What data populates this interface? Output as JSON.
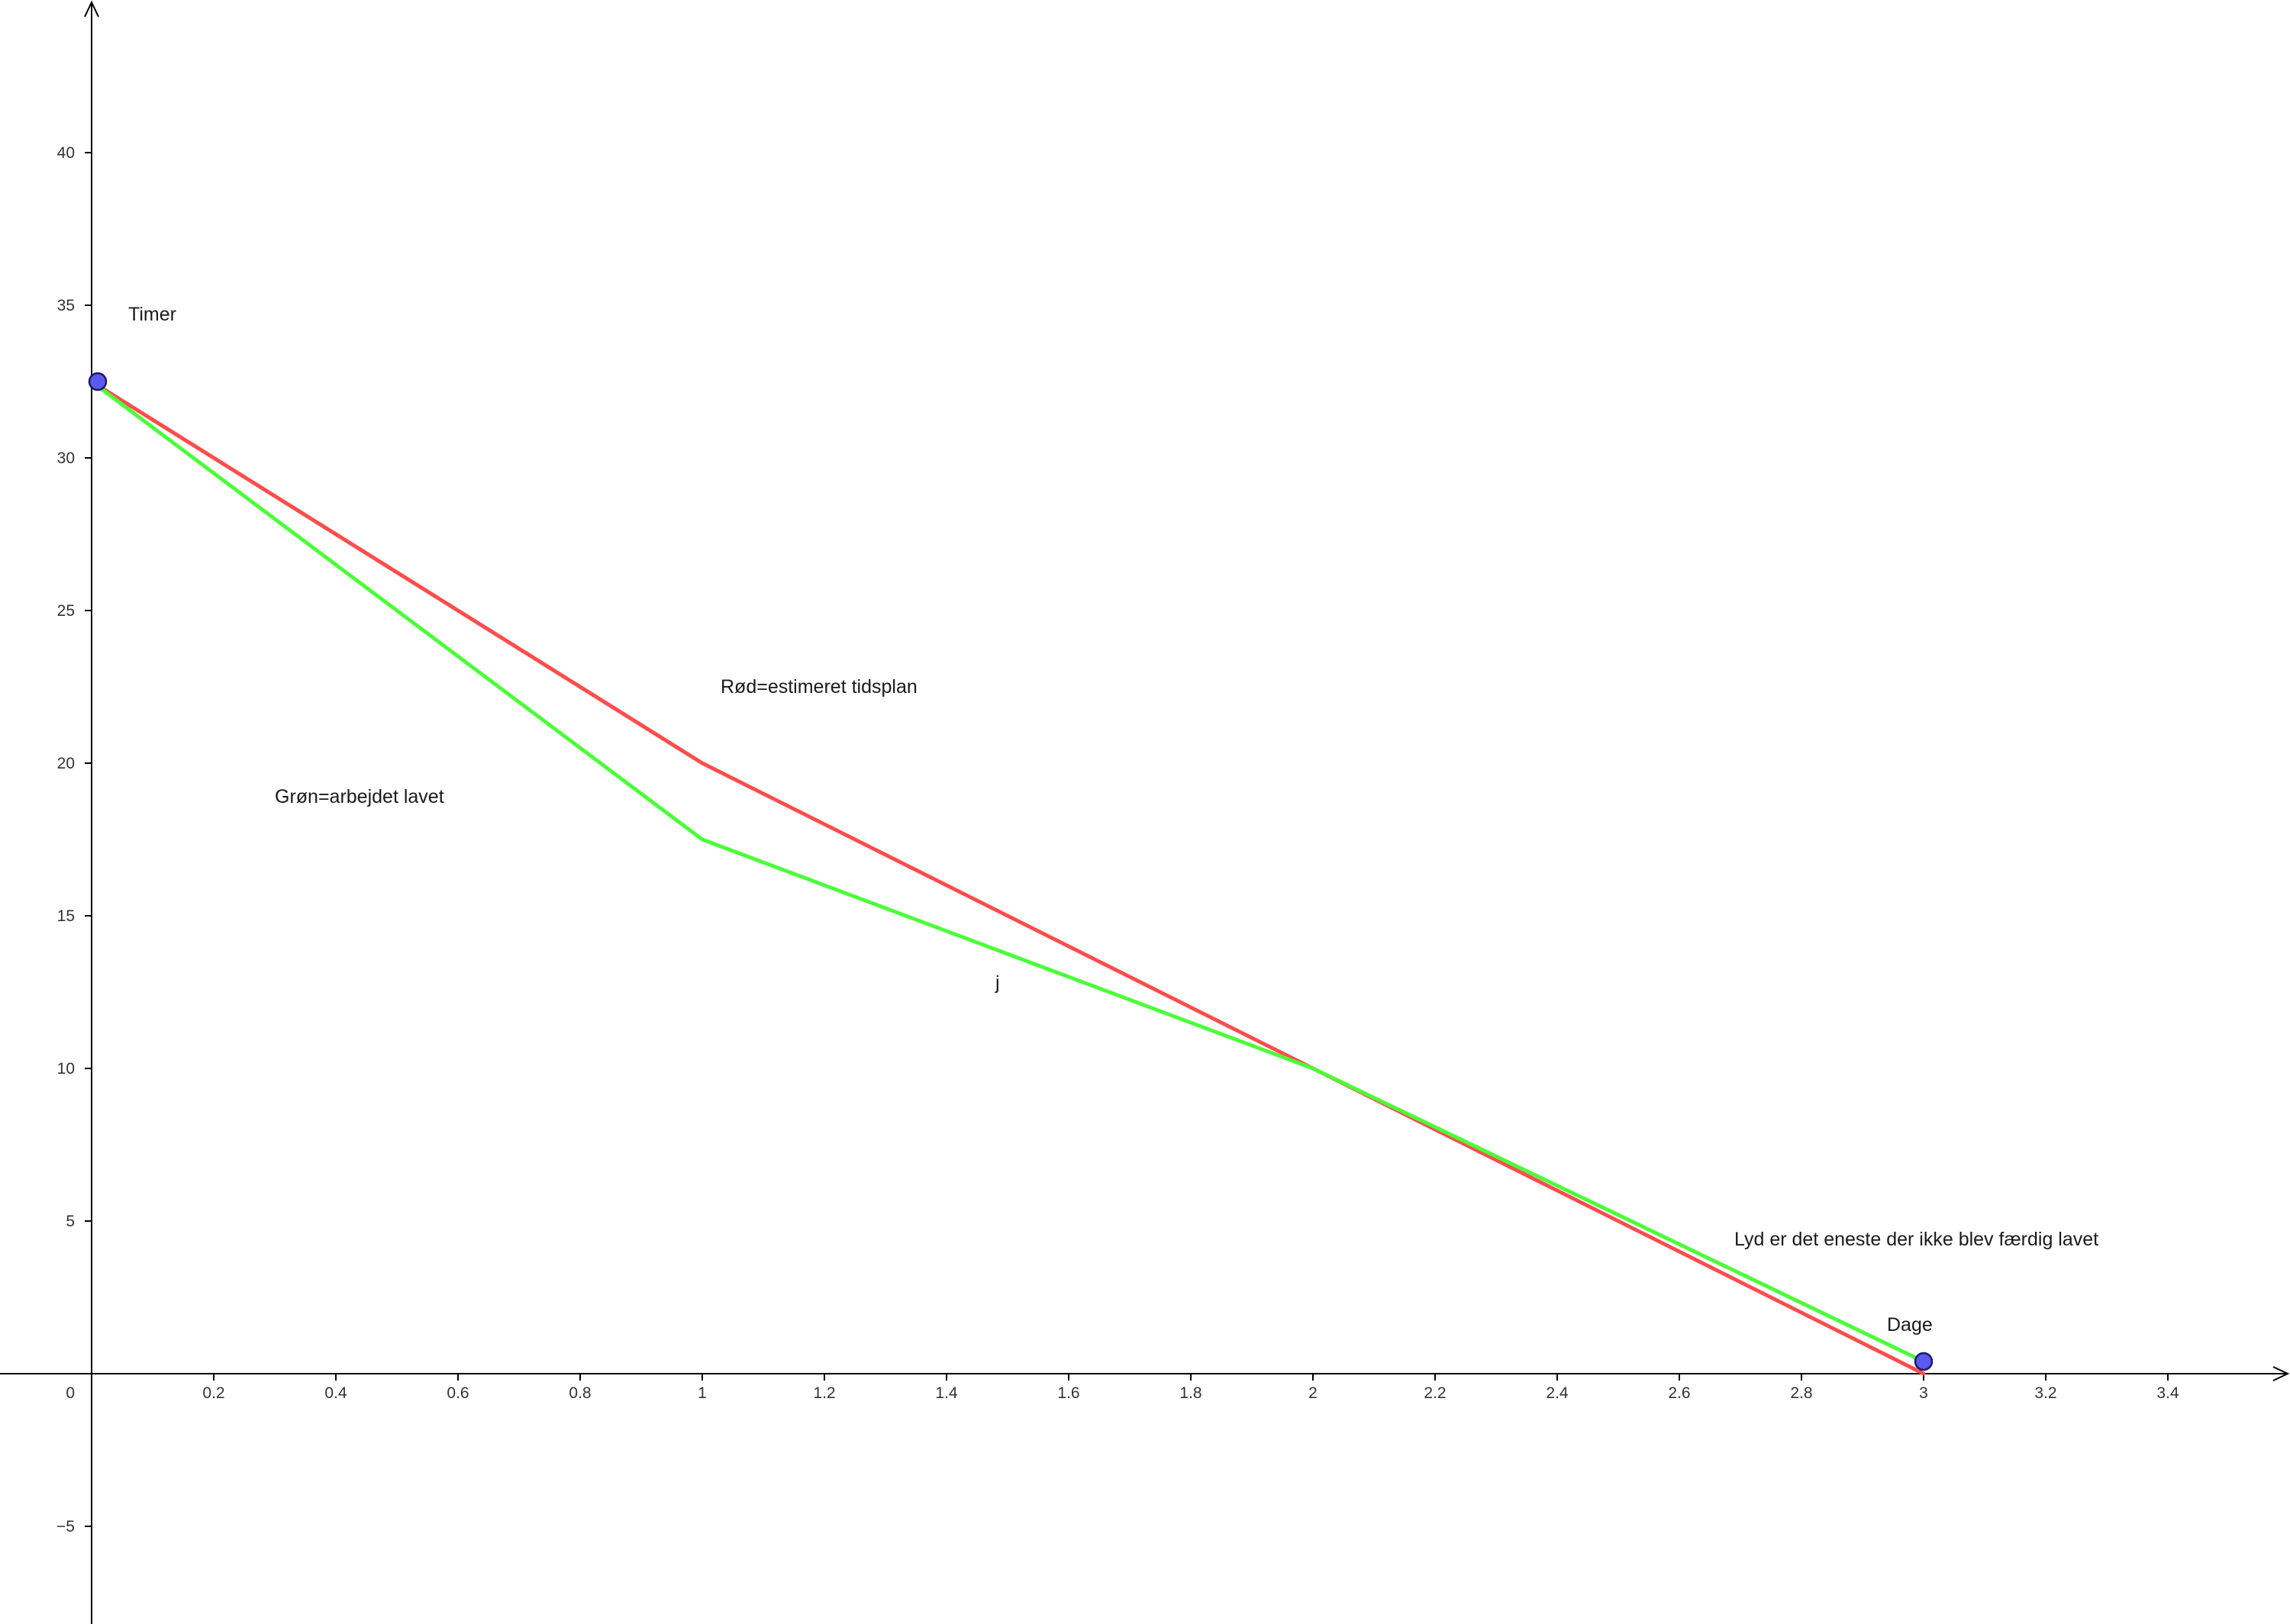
{
  "chart_data": {
    "type": "line",
    "x_axis_label": "Dage",
    "y_axis_label": "Timer",
    "xlim": [
      -0.15,
      3.6
    ],
    "ylim": [
      -8.2,
      45
    ],
    "x_ticks": [
      0.2,
      0.4,
      0.6,
      0.8,
      1,
      1.2,
      1.4,
      1.6,
      1.8,
      2,
      2.2,
      2.4,
      2.6,
      2.8,
      3,
      3.2,
      3.4
    ],
    "x_tick_labels": [
      "0.2",
      "0.4",
      "0.6",
      "0.8",
      "1",
      "1.2",
      "1.4",
      "1.6",
      "1.8",
      "2",
      "2.2",
      "2.4",
      "2.6",
      "2.8",
      "3",
      "3.2",
      "3.4"
    ],
    "y_ticks": [
      -5,
      5,
      10,
      15,
      20,
      25,
      30,
      35,
      40
    ],
    "y_tick_labels": [
      "−5",
      "5",
      "10",
      "15",
      "20",
      "25",
      "30",
      "35",
      "40"
    ],
    "origin_label": "0",
    "grid": false,
    "series": [
      {
        "key": "estimated",
        "color": "#ff4d4d",
        "x": [
          0,
          1,
          2,
          3
        ],
        "y": [
          32.5,
          20,
          10,
          0
        ]
      },
      {
        "key": "actual",
        "name": "j",
        "color": "#4cff3a",
        "x": [
          0,
          1,
          2,
          3
        ],
        "y": [
          32.5,
          17.5,
          10,
          0.4
        ]
      }
    ],
    "points": [
      {
        "x": 0.01,
        "y": 32.5,
        "color": "#5a5aee"
      },
      {
        "x": 3.0,
        "y": 0.4,
        "color": "#5a5aee"
      }
    ],
    "annotations": [
      {
        "key": "timer",
        "text": "Timer",
        "x": 0.06,
        "y": 34.5
      },
      {
        "key": "red_legend",
        "text": "Rød=estimeret tidsplan",
        "x": 1.03,
        "y": 22.3
      },
      {
        "key": "green_legend",
        "text": "Grøn=arbejdet lavet",
        "x": 0.3,
        "y": 18.7
      },
      {
        "key": "series_j",
        "text": "j",
        "x": 1.48,
        "y": 12.6,
        "color": "#4cff3a"
      },
      {
        "key": "note",
        "text": "Lyd er det eneste der ikke blev færdig lavet",
        "x": 2.69,
        "y": 4.2
      },
      {
        "key": "dage",
        "text": "Dage",
        "x": 2.94,
        "y": 1.4
      }
    ]
  }
}
